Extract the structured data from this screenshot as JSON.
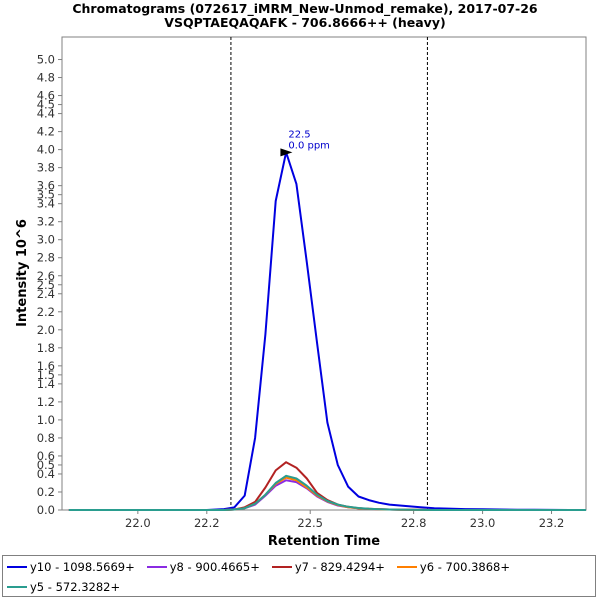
{
  "chart_data": {
    "type": "line",
    "title": "Chromatograms (072617_iMRM_New-Unmod_remake), 2017-07-26",
    "subtitle": "VSQPTAEQAQAFK - 706.8666++ (heavy)",
    "xlabel": "Retention Time",
    "ylabel": "Intensity 10^6",
    "xlim": [
      21.78,
      23.3
    ],
    "ylim": [
      0,
      5.25
    ],
    "xticks": [
      "22.0",
      "22.2",
      "22.5",
      "22.8",
      "23.0",
      "23.2"
    ],
    "xtick_values": [
      22.0,
      22.2,
      22.5,
      22.8,
      23.0,
      23.2
    ],
    "yticks": [
      "0.0",
      "0.2",
      "0.4",
      "0.5",
      "0.6",
      "0.8",
      "1.0",
      "1.2",
      "1.4",
      "1.5",
      "1.6",
      "1.8",
      "2.0",
      "2.2",
      "2.4",
      "2.5",
      "2.6",
      "2.8",
      "3.0",
      "3.2",
      "3.4",
      "3.5",
      "3.6",
      "3.8",
      "4.0",
      "4.2",
      "4.4",
      "4.5",
      "4.6",
      "4.8",
      "5.0"
    ],
    "ytick_values": [
      0.0,
      0.2,
      0.4,
      0.5,
      0.6,
      0.8,
      1.0,
      1.2,
      1.4,
      1.5,
      1.6,
      1.8,
      2.0,
      2.2,
      2.4,
      2.5,
      2.6,
      2.8,
      3.0,
      3.2,
      3.4,
      3.5,
      3.6,
      3.8,
      4.0,
      4.2,
      4.4,
      4.5,
      4.6,
      4.8,
      5.0
    ],
    "vlines": [
      22.27,
      22.84
    ],
    "annotation": {
      "label_rt": "22.5",
      "label_ppm": "0.0 ppm",
      "x": 22.46,
      "y": 3.97,
      "color": "#0000cc"
    },
    "x": [
      21.8,
      21.85,
      21.9,
      21.95,
      22.0,
      22.05,
      22.1,
      22.15,
      22.2,
      22.25,
      22.28,
      22.31,
      22.34,
      22.37,
      22.4,
      22.43,
      22.46,
      22.49,
      22.52,
      22.55,
      22.58,
      22.61,
      22.64,
      22.67,
      22.7,
      22.73,
      22.76,
      22.79,
      22.82,
      22.86,
      22.9,
      22.95,
      23.0,
      23.05,
      23.1,
      23.15,
      23.2,
      23.25,
      23.3
    ],
    "series": [
      {
        "name": "y10 - 1098.5669+",
        "color": "#0000e0",
        "values": [
          0,
          0,
          0,
          0,
          0,
          0,
          0,
          0,
          0,
          0.01,
          0.03,
          0.16,
          0.8,
          1.95,
          3.43,
          3.97,
          3.62,
          2.75,
          1.85,
          0.97,
          0.5,
          0.26,
          0.15,
          0.11,
          0.08,
          0.06,
          0.05,
          0.04,
          0.03,
          0.02,
          0.015,
          0.01,
          0.008,
          0.005,
          0.003,
          0.002,
          0.001,
          0,
          0
        ]
      },
      {
        "name": "y8 - 900.4665+",
        "color": "#8a2be2",
        "values": [
          0,
          0,
          0,
          0,
          0,
          0,
          0,
          0,
          0,
          0,
          0.005,
          0.02,
          0.06,
          0.16,
          0.27,
          0.33,
          0.31,
          0.24,
          0.15,
          0.09,
          0.05,
          0.03,
          0.02,
          0.012,
          0.008,
          0.005,
          0.003,
          0.002,
          0.001,
          0,
          0,
          0,
          0,
          0,
          0,
          0,
          0,
          0,
          0
        ]
      },
      {
        "name": "y7 - 829.4294+",
        "color": "#b22222",
        "values": [
          0,
          0,
          0,
          0,
          0,
          0,
          0,
          0,
          0,
          0,
          0.006,
          0.03,
          0.09,
          0.25,
          0.44,
          0.53,
          0.47,
          0.35,
          0.19,
          0.11,
          0.06,
          0.035,
          0.02,
          0.014,
          0.009,
          0.006,
          0.004,
          0.002,
          0.001,
          0,
          0,
          0,
          0,
          0,
          0,
          0,
          0,
          0,
          0
        ]
      },
      {
        "name": "y6 - 700.3868+",
        "color": "#ff7f00",
        "values": [
          0,
          0,
          0,
          0,
          0,
          0,
          0,
          0,
          0,
          0,
          0.005,
          0.02,
          0.07,
          0.17,
          0.29,
          0.36,
          0.33,
          0.25,
          0.16,
          0.095,
          0.055,
          0.03,
          0.02,
          0.012,
          0.008,
          0.005,
          0.003,
          0.002,
          0.001,
          0,
          0,
          0,
          0,
          0,
          0,
          0,
          0,
          0,
          0
        ]
      },
      {
        "name": "y5 - 572.3282+",
        "color": "#2a9d8f",
        "values": [
          0,
          0,
          0,
          0,
          0,
          0,
          0,
          0,
          0,
          0,
          0.005,
          0.02,
          0.07,
          0.17,
          0.3,
          0.38,
          0.35,
          0.27,
          0.17,
          0.1,
          0.06,
          0.035,
          0.022,
          0.013,
          0.009,
          0.006,
          0.004,
          0.002,
          0.001,
          0,
          0,
          0,
          0,
          0,
          0,
          0,
          0,
          0,
          0
        ]
      }
    ]
  },
  "legend": {
    "row1": [
      {
        "label": "y10 - 1098.5669+",
        "color": "#0000e0"
      },
      {
        "label": "y8 - 900.4665+",
        "color": "#8a2be2"
      },
      {
        "label": "y7 - 829.4294+",
        "color": "#b22222"
      },
      {
        "label": "y6 - 700.3868+",
        "color": "#ff7f00"
      }
    ],
    "row2": [
      {
        "label": "y5 - 572.3282+",
        "color": "#2a9d8f"
      }
    ]
  }
}
